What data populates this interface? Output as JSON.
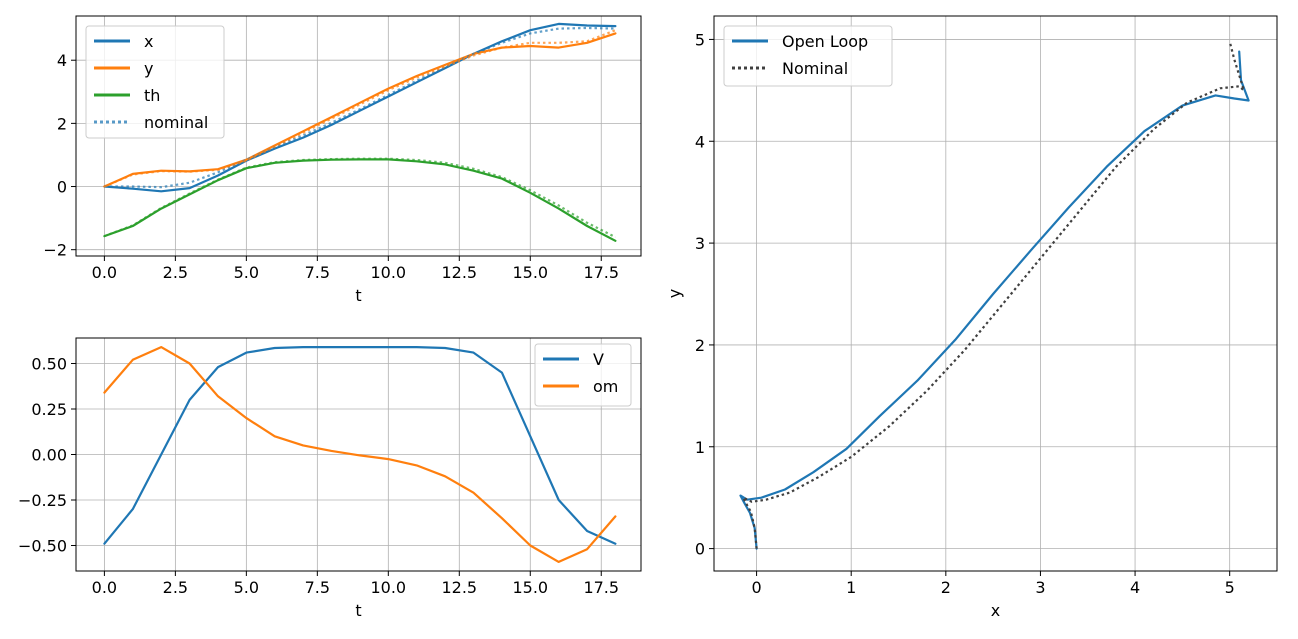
{
  "chart_data": [
    {
      "type": "line",
      "xlabel": "t",
      "ylabel": "",
      "xlim": [
        -1.0,
        18.9
      ],
      "ylim": [
        -2.2,
        5.4
      ],
      "xticks": [
        0.0,
        2.5,
        5.0,
        7.5,
        10.0,
        12.5,
        15.0,
        17.5
      ],
      "xtick_labels": [
        "0.0",
        "2.5",
        "5.0",
        "7.5",
        "10.0",
        "12.5",
        "15.0",
        "17.5"
      ],
      "yticks": [
        -2,
        0,
        2,
        4
      ],
      "ytick_labels": [
        "−2",
        "0",
        "2",
        "4"
      ],
      "grid": true,
      "legend": "upper-left",
      "legend_entries": [
        "x",
        "y",
        "th",
        "nominal"
      ],
      "series": [
        {
          "name": "x",
          "color": "#1f77b4",
          "style": "solid",
          "x": [
            0,
            1,
            2,
            3,
            4,
            5,
            6,
            7,
            8,
            9,
            10,
            11,
            12,
            13,
            14,
            15,
            16,
            17,
            18
          ],
          "y": [
            0,
            -0.07,
            -0.15,
            -0.05,
            0.35,
            0.82,
            1.2,
            1.55,
            1.95,
            2.4,
            2.85,
            3.3,
            3.75,
            4.2,
            4.6,
            4.95,
            5.15,
            5.1,
            5.08
          ]
        },
        {
          "name": "y",
          "color": "#ff7f0e",
          "style": "solid",
          "x": [
            0,
            1,
            2,
            3,
            4,
            5,
            6,
            7,
            8,
            9,
            10,
            11,
            12,
            13,
            14,
            15,
            16,
            17,
            18
          ],
          "y": [
            0,
            0.4,
            0.5,
            0.48,
            0.55,
            0.85,
            1.3,
            1.75,
            2.2,
            2.65,
            3.1,
            3.5,
            3.85,
            4.2,
            4.4,
            4.45,
            4.4,
            4.55,
            4.85
          ]
        },
        {
          "name": "th",
          "color": "#2ca02c",
          "style": "solid",
          "x": [
            0,
            1,
            2,
            3,
            4,
            5,
            6,
            7,
            8,
            9,
            10,
            11,
            12,
            13,
            14,
            15,
            16,
            17,
            18
          ],
          "y": [
            -1.57,
            -1.25,
            -0.7,
            -0.25,
            0.2,
            0.58,
            0.75,
            0.82,
            0.85,
            0.86,
            0.86,
            0.8,
            0.7,
            0.5,
            0.25,
            -0.2,
            -0.7,
            -1.25,
            -1.72
          ]
        },
        {
          "name": "nominal",
          "color": "#1f77b4",
          "style": "dotted",
          "x": [
            0,
            1,
            2,
            3,
            4,
            5,
            6,
            7,
            8,
            9,
            10,
            11,
            12,
            13,
            14,
            15,
            16,
            17,
            18
          ],
          "y": [
            0,
            0.0,
            -0.02,
            0.12,
            0.45,
            0.85,
            1.25,
            1.62,
            2.02,
            2.45,
            2.9,
            3.35,
            3.78,
            4.2,
            4.55,
            4.85,
            5.0,
            5.02,
            5.0
          ]
        },
        {
          "name": "",
          "color": "#ff7f0e",
          "style": "dotted",
          "x": [
            0,
            1,
            2,
            3,
            4,
            5,
            6,
            7,
            8,
            9,
            10,
            11,
            12,
            13,
            14,
            15,
            16,
            17,
            18
          ],
          "y": [
            0,
            0.38,
            0.49,
            0.47,
            0.53,
            0.82,
            1.26,
            1.7,
            2.15,
            2.6,
            3.05,
            3.45,
            3.8,
            4.15,
            4.4,
            4.55,
            4.55,
            4.6,
            4.95
          ]
        },
        {
          "name": "",
          "color": "#2ca02c",
          "style": "dotted",
          "x": [
            0,
            1,
            2,
            3,
            4,
            5,
            6,
            7,
            8,
            9,
            10,
            11,
            12,
            13,
            14,
            15,
            16,
            17,
            18
          ],
          "y": [
            -1.57,
            -1.23,
            -0.68,
            -0.22,
            0.22,
            0.6,
            0.77,
            0.84,
            0.87,
            0.88,
            0.88,
            0.84,
            0.75,
            0.56,
            0.3,
            -0.12,
            -0.6,
            -1.15,
            -1.6
          ]
        }
      ]
    },
    {
      "type": "line",
      "xlabel": "t",
      "ylabel": "",
      "xlim": [
        -1.0,
        18.9
      ],
      "ylim": [
        -0.64,
        0.64
      ],
      "xticks": [
        0.0,
        2.5,
        5.0,
        7.5,
        10.0,
        12.5,
        15.0,
        17.5
      ],
      "xtick_labels": [
        "0.0",
        "2.5",
        "5.0",
        "7.5",
        "10.0",
        "12.5",
        "15.0",
        "17.5"
      ],
      "yticks": [
        -0.5,
        -0.25,
        0.0,
        0.25,
        0.5
      ],
      "ytick_labels": [
        "−0.50",
        "−0.25",
        "0.00",
        "0.25",
        "0.50"
      ],
      "grid": true,
      "legend": "upper-right",
      "legend_entries": [
        "V",
        "om"
      ],
      "series": [
        {
          "name": "V",
          "color": "#1f77b4",
          "style": "solid",
          "x": [
            0,
            1,
            2,
            3,
            4,
            5,
            6,
            7,
            8,
            9,
            10,
            11,
            12,
            13,
            14,
            15,
            16,
            17,
            18
          ],
          "y": [
            -0.49,
            -0.3,
            0.0,
            0.3,
            0.48,
            0.56,
            0.585,
            0.59,
            0.59,
            0.59,
            0.59,
            0.59,
            0.585,
            0.56,
            0.45,
            0.1,
            -0.25,
            -0.42,
            -0.49
          ]
        },
        {
          "name": "om",
          "color": "#ff7f0e",
          "style": "solid",
          "x": [
            0,
            1,
            2,
            3,
            4,
            5,
            6,
            7,
            8,
            9,
            10,
            11,
            12,
            13,
            14,
            15,
            16,
            17,
            18
          ],
          "y": [
            0.34,
            0.52,
            0.59,
            0.5,
            0.32,
            0.2,
            0.1,
            0.05,
            0.02,
            -0.005,
            -0.025,
            -0.06,
            -0.12,
            -0.21,
            -0.35,
            -0.5,
            -0.59,
            -0.52,
            -0.34
          ]
        }
      ]
    },
    {
      "type": "line",
      "xlabel": "x",
      "ylabel": "y",
      "xlim": [
        -0.45,
        5.5
      ],
      "ylim": [
        -0.22,
        5.23
      ],
      "xticks": [
        0,
        1,
        2,
        3,
        4,
        5
      ],
      "xtick_labels": [
        "0",
        "1",
        "2",
        "3",
        "4",
        "5"
      ],
      "yticks": [
        0,
        1,
        2,
        3,
        4,
        5
      ],
      "ytick_labels": [
        "0",
        "1",
        "2",
        "3",
        "4",
        "5"
      ],
      "grid": true,
      "legend": "upper-left",
      "legend_entries": [
        "Open Loop",
        "Nominal"
      ],
      "series": [
        {
          "name": "Open Loop",
          "color": "#1f77b4",
          "style": "solid",
          "x": [
            0.0,
            -0.02,
            -0.07,
            -0.13,
            -0.17,
            -0.1,
            0.05,
            0.3,
            0.6,
            0.95,
            1.3,
            1.7,
            2.1,
            2.5,
            2.9,
            3.3,
            3.7,
            4.1,
            4.5,
            4.85,
            5.05,
            5.2,
            5.12,
            5.1
          ],
          "y": [
            0.0,
            0.2,
            0.35,
            0.45,
            0.52,
            0.48,
            0.5,
            0.58,
            0.75,
            0.98,
            1.3,
            1.65,
            2.05,
            2.5,
            2.93,
            3.35,
            3.75,
            4.1,
            4.35,
            4.45,
            4.42,
            4.4,
            4.6,
            4.88
          ]
        },
        {
          "name": "Nominal",
          "color": "#404040",
          "style": "dotted",
          "x": [
            0.0,
            -0.02,
            -0.06,
            -0.12,
            -0.14,
            -0.05,
            0.1,
            0.35,
            0.65,
            1.0,
            1.4,
            1.8,
            2.2,
            2.6,
            3.0,
            3.4,
            3.8,
            4.2,
            4.55,
            4.9,
            5.1,
            5.15,
            5.05,
            5.0
          ],
          "y": [
            0.0,
            0.2,
            0.36,
            0.46,
            0.5,
            0.46,
            0.48,
            0.55,
            0.7,
            0.9,
            1.2,
            1.55,
            1.95,
            2.4,
            2.85,
            3.3,
            3.75,
            4.12,
            4.38,
            4.52,
            4.54,
            4.5,
            4.8,
            4.98
          ]
        }
      ]
    }
  ]
}
